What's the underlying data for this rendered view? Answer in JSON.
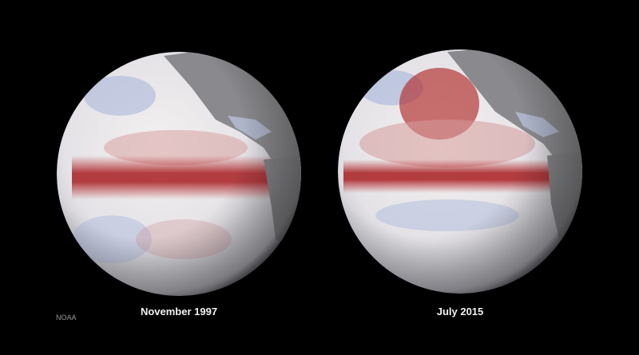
{
  "globes": [
    {
      "label": "November 1997"
    },
    {
      "label": "July 2015"
    }
  ],
  "credit": "NOAA"
}
